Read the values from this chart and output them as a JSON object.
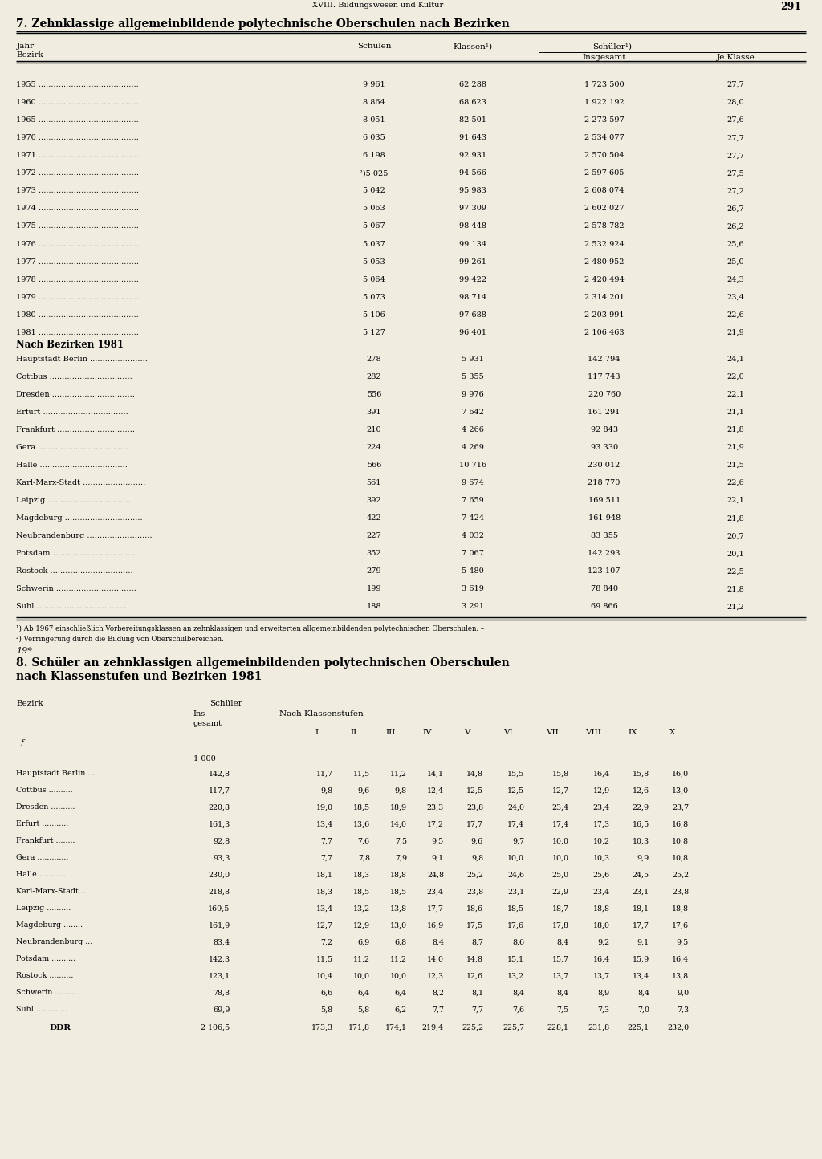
{
  "page_header_left": "XVIII. Bildungswesen und Kultur",
  "page_number": "291",
  "section7_title": "7. Zehnklassige allgemeinbildende polytechnische Oberschulen nach Bezirken",
  "section7_years_data": [
    [
      "1955",
      "9 961",
      "62 288",
      "1 723 500",
      "27,7"
    ],
    [
      "1960",
      "8 864",
      "68 623",
      "1 922 192",
      "28,0"
    ],
    [
      "1965",
      "8 051",
      "82 501",
      "2 273 597",
      "27,6"
    ],
    [
      "1970",
      "6 035",
      "91 643",
      "2 534 077",
      "27,7"
    ],
    [
      "1971",
      "6 198",
      "92 931",
      "2 570 504",
      "27,7"
    ],
    [
      "1972",
      "²)5 025",
      "94 566",
      "2 597 605",
      "27,5"
    ],
    [
      "1973",
      "5 042",
      "95 983",
      "2 608 074",
      "27,2"
    ],
    [
      "1974",
      "5 063",
      "97 309",
      "2 602 027",
      "26,7"
    ],
    [
      "1975",
      "5 067",
      "98 448",
      "2 578 782",
      "26,2"
    ],
    [
      "1976",
      "5 037",
      "99 134",
      "2 532 924",
      "25,6"
    ],
    [
      "1977",
      "5 053",
      "99 261",
      "2 480 952",
      "25,0"
    ],
    [
      "1978",
      "5 064",
      "99 422",
      "2 420 494",
      "24,3"
    ],
    [
      "1979",
      "5 073",
      "98 714",
      "2 314 201",
      "23,4"
    ],
    [
      "1980",
      "5 106",
      "97 688",
      "2 203 991",
      "22,6"
    ],
    [
      "1981",
      "5 127",
      "96 401",
      "2 106 463",
      "21,9"
    ]
  ],
  "section7_bezirk_subtitle": "Nach Bezirken 1981",
  "section7_bezirk_data": [
    [
      "Hauptstadt Berlin",
      "278",
      "5 931",
      "142 794",
      "24,1"
    ],
    [
      "Cottbus",
      "282",
      "5 355",
      "117 743",
      "22,0"
    ],
    [
      "Dresden",
      "556",
      "9 976",
      "220 760",
      "22,1"
    ],
    [
      "Erfurt",
      "391",
      "7 642",
      "161 291",
      "21,1"
    ],
    [
      "Frankfurt",
      "210",
      "4 266",
      "92 843",
      "21,8"
    ],
    [
      "Gera",
      "224",
      "4 269",
      "93 330",
      "21,9"
    ],
    [
      "Halle",
      "566",
      "10 716",
      "230 012",
      "21,5"
    ],
    [
      "Karl-Marx-Stadt",
      "561",
      "9 674",
      "218 770",
      "22,6"
    ],
    [
      "Leipzig",
      "392",
      "7 659",
      "169 511",
      "22,1"
    ],
    [
      "Magdeburg",
      "422",
      "7 424",
      "161 948",
      "21,8"
    ],
    [
      "Neubrandenburg",
      "227",
      "4 032",
      "83 355",
      "20,7"
    ],
    [
      "Potsdam",
      "352",
      "7 067",
      "142 293",
      "20,1"
    ],
    [
      "Rostock",
      "279",
      "5 480",
      "123 107",
      "22,5"
    ],
    [
      "Schwerin",
      "199",
      "3 619",
      "78 840",
      "21,8"
    ],
    [
      "Suhl",
      "188",
      "3 291",
      "69 866",
      "21,2"
    ]
  ],
  "section7_footnote1": "¹) Ab 1967 einschließlich Vorbereitungsklassen an zehnklassigen und erweiterten allgemeinbildenden polytechnischen Oberschulen. –",
  "section7_footnote2": "²) Verringerung durch die Bildung von Oberschulbereichen.",
  "section8_title_line1": "8. Schüler an zehnklassigen allgemeinbildenden polytechnischen Oberschulen",
  "section8_title_line2": "nach Klassenstufen und Bezirken 1981",
  "section8_class_levels": [
    "I",
    "II",
    "III",
    "IV",
    "V",
    "VI",
    "VII",
    "VIII",
    "IX",
    "X"
  ],
  "section8_unit": "1 000",
  "section8_data": [
    [
      "Hauptstadt Berlin ...",
      "142,8",
      "11,7",
      "11,5",
      "11,2",
      "14,1",
      "14,8",
      "15,5",
      "15,8",
      "16,4",
      "15,8",
      "16,0"
    ],
    [
      "Cottbus ..........",
      "117,7",
      "9,8",
      "9,6",
      "9,8",
      "12,4",
      "12,5",
      "12,5",
      "12,7",
      "12,9",
      "12,6",
      "13,0"
    ],
    [
      "Dresden ..........",
      "220,8",
      "19,0",
      "18,5",
      "18,9",
      "23,3",
      "23,8",
      "24,0",
      "23,4",
      "23,4",
      "22,9",
      "23,7"
    ],
    [
      "Erfurt ...........",
      "161,3",
      "13,4",
      "13,6",
      "14,0",
      "17,2",
      "17,7",
      "17,4",
      "17,4",
      "17,3",
      "16,5",
      "16,8"
    ],
    [
      "Frankfurt ........",
      "92,8",
      "7,7",
      "7,6",
      "7,5",
      "9,5",
      "9,6",
      "9,7",
      "10,0",
      "10,2",
      "10,3",
      "10,8"
    ],
    [
      "Gera .............",
      "93,3",
      "7,7",
      "7,8",
      "7,9",
      "9,1",
      "9,8",
      "10,0",
      "10,0",
      "10,3",
      "9,9",
      "10,8"
    ],
    [
      "Halle ............",
      "230,0",
      "18,1",
      "18,3",
      "18,8",
      "24,8",
      "25,2",
      "24,6",
      "25,0",
      "25,6",
      "24,5",
      "25,2"
    ],
    [
      "Karl-Marx-Stadt ..",
      "218,8",
      "18,3",
      "18,5",
      "18,5",
      "23,4",
      "23,8",
      "23,1",
      "22,9",
      "23,4",
      "23,1",
      "23,8"
    ],
    [
      "Leipzig ..........",
      "169,5",
      "13,4",
      "13,2",
      "13,8",
      "17,7",
      "18,6",
      "18,5",
      "18,7",
      "18,8",
      "18,1",
      "18,8"
    ],
    [
      "Magdeburg ........",
      "161,9",
      "12,7",
      "12,9",
      "13,0",
      "16,9",
      "17,5",
      "17,6",
      "17,8",
      "18,0",
      "17,7",
      "17,6"
    ],
    [
      "Neubrandenburg ...",
      "83,4",
      "7,2",
      "6,9",
      "6,8",
      "8,4",
      "8,7",
      "8,6",
      "8,4",
      "9,2",
      "9,1",
      "9,5"
    ],
    [
      "Potsdam ..........",
      "142,3",
      "11,5",
      "11,2",
      "11,2",
      "14,0",
      "14,8",
      "15,1",
      "15,7",
      "16,4",
      "15,9",
      "16,4"
    ],
    [
      "Rostock ..........",
      "123,1",
      "10,4",
      "10,0",
      "10,0",
      "12,3",
      "12,6",
      "13,2",
      "13,7",
      "13,7",
      "13,4",
      "13,8"
    ],
    [
      "Schwerin .........",
      "78,8",
      "6,6",
      "6,4",
      "6,4",
      "8,2",
      "8,1",
      "8,4",
      "8,4",
      "8,9",
      "8,4",
      "9,0"
    ],
    [
      "Suhl .............",
      "69,9",
      "5,8",
      "5,8",
      "6,2",
      "7,7",
      "7,7",
      "7,6",
      "7,5",
      "7,3",
      "7,0",
      "7,3"
    ]
  ],
  "section8_ddr_row": [
    "DDR",
    "2 106,5",
    "173,3",
    "171,8",
    "174,1",
    "219,4",
    "225,2",
    "225,7",
    "228,1",
    "231,8",
    "225,1",
    "232,0"
  ],
  "footer": "19*",
  "bg_color": "#f0ece0"
}
